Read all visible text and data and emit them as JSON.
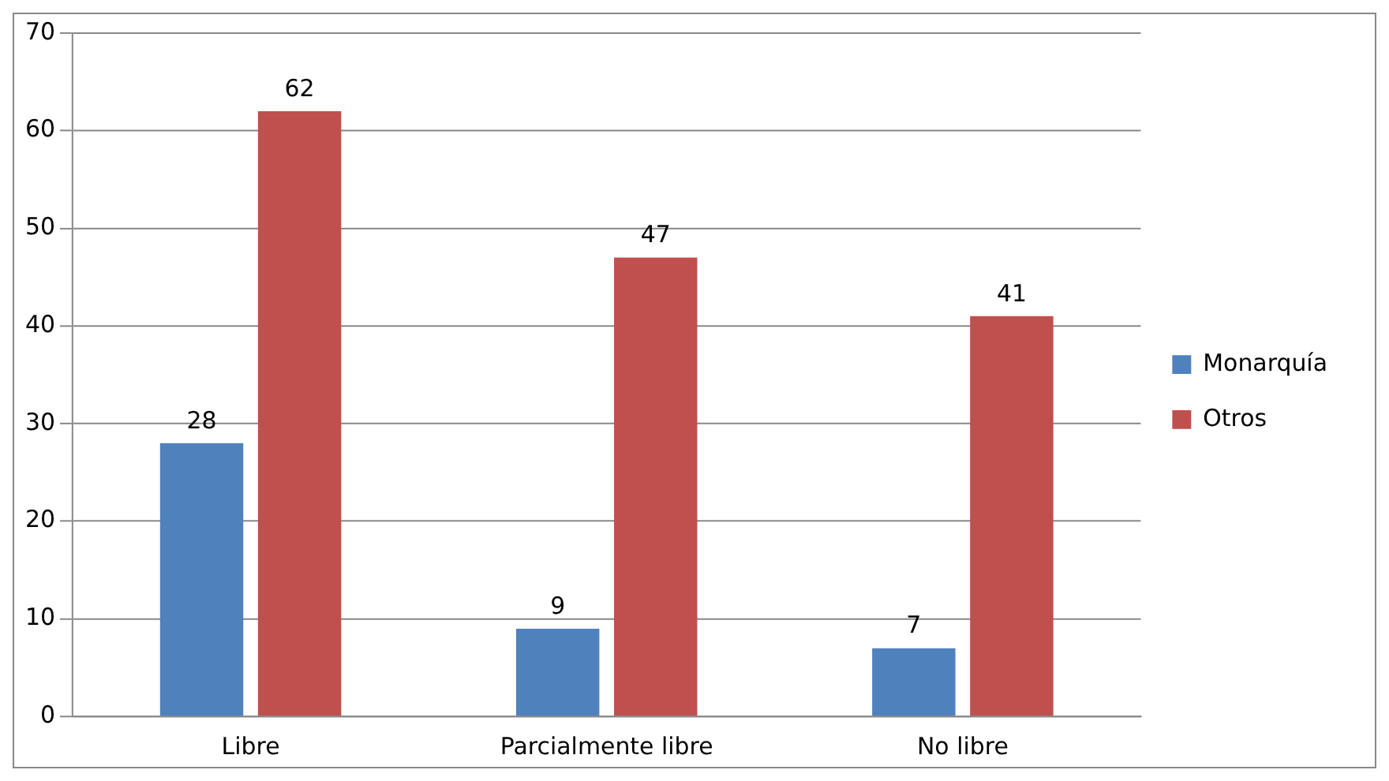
{
  "chart_data": {
    "type": "bar",
    "categories": [
      "Libre",
      "Parcialmente libre",
      "No libre"
    ],
    "series": [
      {
        "name": "Monarquía",
        "color": "#4f81bd",
        "values": [
          28,
          9,
          7
        ]
      },
      {
        "name": "Otros",
        "color": "#c0504d",
        "values": [
          62,
          47,
          41
        ]
      }
    ],
    "ylim": [
      0,
      70
    ],
    "yticks": [
      0,
      10,
      20,
      30,
      40,
      50,
      60,
      70
    ],
    "grid": "y",
    "legend": "right",
    "data_labels": true
  }
}
